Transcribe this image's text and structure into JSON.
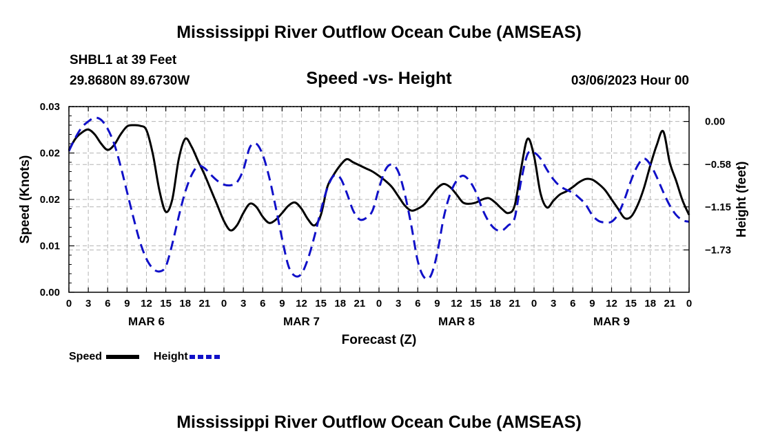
{
  "header": {
    "title": "Mississippi River Outflow Ocean Cube (AMSEAS)",
    "station": "SHBL1 at 39 Feet",
    "coords": "29.8680N  89.6730W",
    "subtitle": "Speed -vs- Height",
    "date": "03/06/2023 Hour 00"
  },
  "footer_title": "Mississippi River Outflow Ocean Cube (AMSEAS)",
  "legend": {
    "speed_label": "Speed",
    "height_label": "Height"
  },
  "colors": {
    "speed": "#000000",
    "height": "#1010c8",
    "grid": "#b4b4b4"
  },
  "chart_data": {
    "type": "line",
    "title": "Speed -vs- Height",
    "xlabel": "Forecast (Z)",
    "ylabel": "Speed (Knots)",
    "y2label": "Height (feet)",
    "x_unit": "hours since 03/06/2023 00Z",
    "xlim": [
      0,
      96
    ],
    "ylim": [
      0,
      0.03
    ],
    "y2lim": [
      -2.3,
      0.2
    ],
    "y_ticks": [
      0,
      0.0075,
      0.015,
      0.0225,
      0.03
    ],
    "y_tick_labels": [
      "0.00",
      "0.01",
      "0.02",
      "0.02",
      "0.03"
    ],
    "y2_ticks": [
      0,
      -0.58,
      -1.15,
      -1.73
    ],
    "y2_tick_labels": [
      "0.00",
      "−0.58",
      "−1.15",
      "−1.73"
    ],
    "x_ticks": [
      0,
      3,
      6,
      9,
      12,
      15,
      18,
      21,
      24,
      27,
      30,
      33,
      36,
      39,
      42,
      45,
      48,
      51,
      54,
      57,
      60,
      63,
      66,
      69,
      72,
      75,
      78,
      81,
      84,
      87,
      90,
      93,
      96
    ],
    "x_tick_labels": [
      "0",
      "3",
      "6",
      "9",
      "12",
      "15",
      "18",
      "21",
      "0",
      "3",
      "6",
      "9",
      "12",
      "15",
      "18",
      "21",
      "0",
      "3",
      "6",
      "9",
      "12",
      "15",
      "18",
      "21",
      "0",
      "3",
      "6",
      "9",
      "12",
      "15",
      "18",
      "21",
      "0"
    ],
    "day_labels": [
      {
        "x": 12,
        "label": "MAR 6"
      },
      {
        "x": 36,
        "label": "MAR 7"
      },
      {
        "x": 60,
        "label": "MAR 8"
      },
      {
        "x": 84,
        "label": "MAR 9"
      }
    ],
    "series": [
      {
        "name": "Speed",
        "axis": "left",
        "style": "solid",
        "x": [
          0,
          1,
          2,
          3,
          4,
          5,
          6,
          7,
          8,
          9,
          10,
          11,
          12,
          13,
          14,
          15,
          16,
          17,
          18,
          19,
          20,
          21,
          22,
          23,
          24,
          25,
          26,
          27,
          28,
          29,
          30,
          31,
          32,
          33,
          34,
          35,
          36,
          37,
          38,
          39,
          40,
          41,
          42,
          43,
          44,
          45,
          46,
          47,
          48,
          49,
          50,
          51,
          52,
          53,
          54,
          55,
          56,
          57,
          58,
          59,
          60,
          61,
          62,
          63,
          64,
          65,
          66,
          67,
          68,
          69,
          70,
          71,
          72,
          73,
          74,
          75,
          76,
          77,
          78,
          79,
          80,
          81,
          82,
          83,
          84,
          85,
          86,
          87,
          88,
          89,
          90,
          91,
          92,
          93,
          94,
          95,
          96
        ],
        "values": [
          0.023,
          0.0248,
          0.0258,
          0.0263,
          0.0255,
          0.024,
          0.023,
          0.0238,
          0.0255,
          0.0268,
          0.027,
          0.0269,
          0.0262,
          0.0223,
          0.0165,
          0.013,
          0.015,
          0.0215,
          0.0248,
          0.0235,
          0.0212,
          0.019,
          0.0165,
          0.014,
          0.0115,
          0.01,
          0.0108,
          0.0128,
          0.0143,
          0.0138,
          0.0122,
          0.0112,
          0.0117,
          0.0128,
          0.014,
          0.0145,
          0.0135,
          0.0118,
          0.0108,
          0.0125,
          0.017,
          0.019,
          0.0205,
          0.0215,
          0.021,
          0.0205,
          0.02,
          0.0195,
          0.0188,
          0.018,
          0.017,
          0.0155,
          0.014,
          0.0132,
          0.0135,
          0.0142,
          0.0155,
          0.0168,
          0.0175,
          0.017,
          0.0158,
          0.0145,
          0.0143,
          0.0145,
          0.015,
          0.0152,
          0.0145,
          0.0135,
          0.0128,
          0.014,
          0.02,
          0.0248,
          0.022,
          0.016,
          0.0137,
          0.0148,
          0.0158,
          0.0163,
          0.017,
          0.0178,
          0.0183,
          0.0182,
          0.0175,
          0.0165,
          0.015,
          0.0135,
          0.012,
          0.0122,
          0.014,
          0.0168,
          0.0205,
          0.0238,
          0.026,
          0.021,
          0.018,
          0.0148,
          0.0125
        ]
      },
      {
        "name": "Height",
        "axis": "right",
        "style": "dashed",
        "x": [
          0,
          1,
          2,
          3,
          4,
          5,
          6,
          7,
          8,
          9,
          10,
          11,
          12,
          13,
          14,
          15,
          16,
          17,
          18,
          19,
          20,
          21,
          22,
          23,
          24,
          25,
          26,
          27,
          28,
          29,
          30,
          31,
          32,
          33,
          34,
          35,
          36,
          37,
          38,
          39,
          40,
          41,
          42,
          43,
          44,
          45,
          46,
          47,
          48,
          49,
          50,
          51,
          52,
          53,
          54,
          55,
          56,
          57,
          58,
          59,
          60,
          61,
          62,
          63,
          64,
          65,
          66,
          67,
          68,
          69,
          70,
          71,
          72,
          73,
          74,
          75,
          76,
          77,
          78,
          79,
          80,
          81,
          82,
          83,
          84,
          85,
          86,
          87,
          88,
          89,
          90,
          91,
          92,
          93,
          94,
          95,
          96
        ],
        "values": [
          -0.4,
          -0.22,
          -0.08,
          0.0,
          0.05,
          0.02,
          -0.1,
          -0.3,
          -0.6,
          -0.95,
          -1.3,
          -1.62,
          -1.85,
          -1.98,
          -2.02,
          -1.95,
          -1.65,
          -1.28,
          -0.95,
          -0.72,
          -0.6,
          -0.63,
          -0.72,
          -0.8,
          -0.85,
          -0.86,
          -0.82,
          -0.65,
          -0.35,
          -0.3,
          -0.45,
          -0.75,
          -1.15,
          -1.58,
          -1.95,
          -2.08,
          -2.05,
          -1.85,
          -1.55,
          -1.2,
          -0.9,
          -0.73,
          -0.76,
          -0.96,
          -1.2,
          -1.32,
          -1.3,
          -1.2,
          -0.9,
          -0.65,
          -0.58,
          -0.68,
          -0.98,
          -1.4,
          -1.88,
          -2.1,
          -2.08,
          -1.78,
          -1.3,
          -0.98,
          -0.8,
          -0.73,
          -0.8,
          -0.95,
          -1.18,
          -1.35,
          -1.45,
          -1.47,
          -1.4,
          -1.3,
          -0.8,
          -0.44,
          -0.42,
          -0.5,
          -0.65,
          -0.78,
          -0.87,
          -0.92,
          -0.96,
          -1.03,
          -1.12,
          -1.26,
          -1.34,
          -1.36,
          -1.35,
          -1.25,
          -1.05,
          -0.8,
          -0.6,
          -0.5,
          -0.58,
          -0.75,
          -0.95,
          -1.13,
          -1.26,
          -1.33,
          -1.35
        ]
      }
    ],
    "legend_position": "bottom-left"
  }
}
